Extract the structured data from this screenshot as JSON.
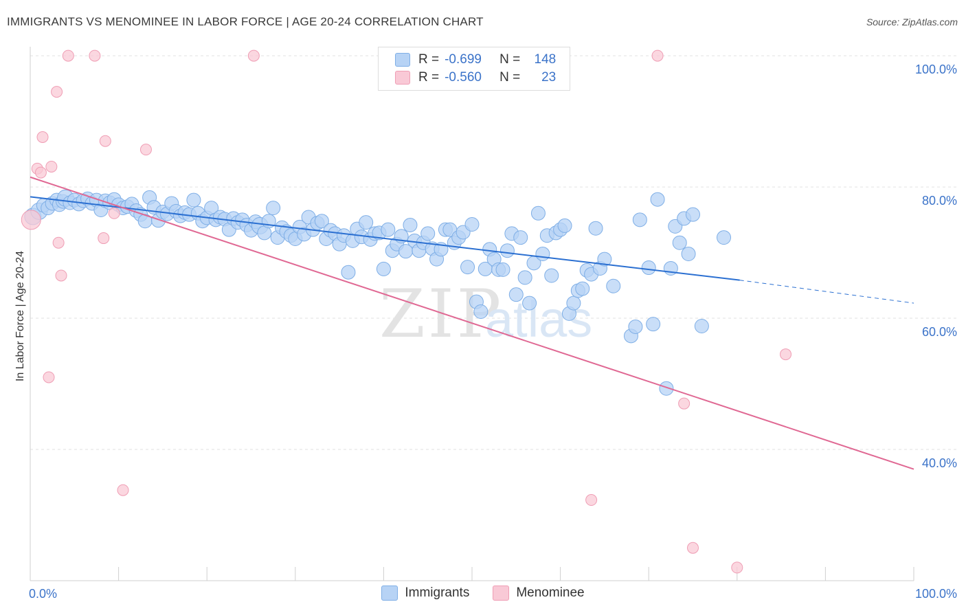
{
  "title": "IMMIGRANTS VS MENOMINEE IN LABOR FORCE | AGE 20-24 CORRELATION CHART",
  "source": "Source: ZipAtlas.com",
  "watermark": {
    "zip": "ZIP",
    "atlas": "atlas"
  },
  "legend": {
    "rows": [
      {
        "r_label": "R =",
        "r_value": "-0.699",
        "n_label": "N =",
        "n_value": "148"
      },
      {
        "r_label": "R =",
        "r_value": "-0.560",
        "n_label": "N =",
        "n_value": "23"
      }
    ]
  },
  "colors": {
    "immigrants_fill": "#b7d3f5",
    "immigrants_stroke": "#7eaee6",
    "immigrants_line": "#2a6fd1",
    "menominee_fill": "#f9c9d6",
    "menominee_stroke": "#ef9db4",
    "menominee_line": "#e06893",
    "axis_text": "#3b73c9"
  },
  "chart_data": {
    "type": "scatter",
    "title": "IMMIGRANTS VS MENOMINEE IN LABOR FORCE | AGE 20-24 CORRELATION CHART",
    "xlabel": "",
    "ylabel": "In Labor Force | Age 20-24",
    "xlim": [
      0,
      100
    ],
    "ylim": [
      20,
      102
    ],
    "x_tick_labels": [
      {
        "value": 0,
        "label": "0.0%"
      },
      {
        "value": 100,
        "label": "100.0%"
      }
    ],
    "y_tick_labels": [
      {
        "value": 100,
        "label": "100.0%"
      },
      {
        "value": 80,
        "label": "80.0%"
      },
      {
        "value": 60,
        "label": "60.0%"
      },
      {
        "value": 40,
        "label": "40.0%"
      }
    ],
    "grid": "horizontal-dashed",
    "legend_position": "top-center",
    "series": [
      {
        "name": "Immigrants",
        "trend": {
          "x": [
            0,
            80.3
          ],
          "y": [
            78.5,
            65.8
          ],
          "dashed_extension_to": [
            100,
            62.3
          ]
        },
        "points": [
          [
            0.3,
            75.5
          ],
          [
            1.0,
            76.3
          ],
          [
            1.5,
            77.2
          ],
          [
            2.0,
            76.8
          ],
          [
            2.5,
            77.5
          ],
          [
            3.0,
            78.0
          ],
          [
            3.3,
            77.3
          ],
          [
            3.7,
            77.8
          ],
          [
            4.0,
            78.3
          ],
          [
            4.5,
            77.6
          ],
          [
            5.0,
            78.0
          ],
          [
            5.5,
            77.4
          ],
          [
            6.0,
            77.9
          ],
          [
            6.5,
            78.2
          ],
          [
            7.0,
            77.5
          ],
          [
            7.5,
            78.0
          ],
          [
            8.0,
            76.5
          ],
          [
            8.5,
            77.9
          ],
          [
            9.0,
            77.6
          ],
          [
            9.5,
            78.1
          ],
          [
            10.0,
            77.3
          ],
          [
            10.5,
            76.8
          ],
          [
            11.0,
            77.0
          ],
          [
            11.5,
            77.4
          ],
          [
            12.0,
            76.4
          ],
          [
            12.5,
            75.8
          ],
          [
            13.0,
            74.8
          ],
          [
            13.5,
            78.4
          ],
          [
            14.0,
            76.9
          ],
          [
            14.5,
            74.9
          ],
          [
            15.0,
            76.2
          ],
          [
            15.5,
            75.9
          ],
          [
            16.0,
            77.5
          ],
          [
            16.5,
            76.3
          ],
          [
            17.0,
            75.6
          ],
          [
            17.5,
            76.1
          ],
          [
            18.0,
            75.8
          ],
          [
            18.5,
            78.0
          ],
          [
            19.0,
            76.0
          ],
          [
            19.5,
            74.8
          ],
          [
            20.0,
            75.3
          ],
          [
            20.5,
            76.8
          ],
          [
            21.0,
            75.0
          ],
          [
            21.5,
            75.4
          ],
          [
            22.0,
            75.1
          ],
          [
            22.5,
            73.5
          ],
          [
            23.0,
            75.2
          ],
          [
            23.5,
            74.6
          ],
          [
            24.0,
            75.0
          ],
          [
            24.5,
            74.2
          ],
          [
            25.0,
            73.4
          ],
          [
            25.5,
            74.7
          ],
          [
            26.0,
            74.1
          ],
          [
            26.5,
            73.0
          ],
          [
            27.0,
            74.8
          ],
          [
            27.5,
            76.8
          ],
          [
            28.0,
            72.3
          ],
          [
            28.5,
            73.8
          ],
          [
            29.0,
            73.2
          ],
          [
            29.5,
            72.6
          ],
          [
            30.0,
            72.1
          ],
          [
            30.5,
            73.9
          ],
          [
            31.0,
            72.8
          ],
          [
            31.5,
            75.4
          ],
          [
            32.0,
            73.5
          ],
          [
            32.5,
            74.5
          ],
          [
            33.0,
            74.8
          ],
          [
            33.5,
            72.1
          ],
          [
            34.0,
            73.4
          ],
          [
            34.5,
            72.9
          ],
          [
            35.0,
            71.3
          ],
          [
            35.5,
            72.6
          ],
          [
            36.0,
            67.0
          ],
          [
            36.5,
            71.8
          ],
          [
            37.0,
            73.6
          ],
          [
            37.5,
            72.4
          ],
          [
            38.0,
            74.6
          ],
          [
            38.5,
            72.0
          ],
          [
            39.0,
            72.9
          ],
          [
            39.5,
            73.0
          ],
          [
            40.0,
            67.5
          ],
          [
            40.5,
            73.5
          ],
          [
            41.0,
            70.3
          ],
          [
            41.5,
            71.3
          ],
          [
            42.0,
            72.5
          ],
          [
            42.5,
            70.2
          ],
          [
            43.0,
            74.2
          ],
          [
            43.5,
            71.8
          ],
          [
            44.0,
            70.3
          ],
          [
            44.5,
            71.5
          ],
          [
            45.0,
            72.9
          ],
          [
            45.5,
            70.6
          ],
          [
            46.0,
            69.0
          ],
          [
            46.5,
            70.5
          ],
          [
            47.0,
            73.5
          ],
          [
            47.5,
            73.5
          ],
          [
            48.0,
            71.5
          ],
          [
            48.5,
            72.3
          ],
          [
            49.0,
            73.1
          ],
          [
            49.5,
            67.8
          ],
          [
            50.0,
            74.3
          ],
          [
            50.5,
            62.5
          ],
          [
            51.0,
            61.0
          ],
          [
            51.5,
            67.5
          ],
          [
            52.0,
            70.5
          ],
          [
            52.5,
            69.0
          ],
          [
            53.0,
            67.4
          ],
          [
            53.5,
            67.4
          ],
          [
            54.0,
            70.3
          ],
          [
            54.5,
            72.9
          ],
          [
            55.0,
            63.6
          ],
          [
            55.5,
            72.3
          ],
          [
            56.0,
            66.2
          ],
          [
            56.5,
            62.3
          ],
          [
            57.0,
            68.4
          ],
          [
            57.5,
            76.0
          ],
          [
            58.0,
            69.8
          ],
          [
            58.5,
            72.6
          ],
          [
            59.0,
            66.5
          ],
          [
            59.5,
            73.0
          ],
          [
            60.0,
            73.5
          ],
          [
            60.5,
            74.1
          ],
          [
            61.0,
            60.7
          ],
          [
            61.5,
            62.3
          ],
          [
            62.0,
            64.2
          ],
          [
            62.5,
            64.5
          ],
          [
            63.0,
            67.3
          ],
          [
            63.5,
            66.7
          ],
          [
            64.0,
            73.7
          ],
          [
            64.5,
            67.6
          ],
          [
            65.0,
            69.0
          ],
          [
            66.0,
            64.9
          ],
          [
            68.0,
            57.3
          ],
          [
            68.5,
            58.7
          ],
          [
            69.0,
            75.0
          ],
          [
            70.0,
            67.7
          ],
          [
            70.5,
            59.1
          ],
          [
            71.0,
            78.1
          ],
          [
            72.0,
            49.3
          ],
          [
            72.5,
            67.6
          ],
          [
            73.0,
            74.0
          ],
          [
            73.5,
            71.5
          ],
          [
            74.0,
            75.2
          ],
          [
            74.5,
            69.8
          ],
          [
            75.0,
            75.8
          ],
          [
            76.0,
            58.8
          ],
          [
            78.5,
            72.3
          ]
        ]
      },
      {
        "name": "Menominee",
        "trend": {
          "x": [
            0,
            100
          ],
          "y": [
            81.5,
            37.0
          ]
        },
        "points": [
          [
            0.1,
            75.0
          ],
          [
            0.8,
            82.8
          ],
          [
            1.2,
            82.2
          ],
          [
            1.4,
            87.6
          ],
          [
            2.1,
            51.0
          ],
          [
            2.4,
            83.1
          ],
          [
            3.0,
            94.5
          ],
          [
            3.2,
            71.5
          ],
          [
            3.5,
            66.5
          ],
          [
            4.3,
            100.0
          ],
          [
            7.3,
            100.0
          ],
          [
            8.3,
            72.2
          ],
          [
            8.5,
            87.0
          ],
          [
            9.5,
            76.0
          ],
          [
            10.5,
            33.8
          ],
          [
            13.1,
            85.7
          ],
          [
            25.3,
            100.0
          ],
          [
            71.0,
            100.0
          ],
          [
            63.5,
            32.3
          ],
          [
            74.0,
            47.0
          ],
          [
            75.0,
            25.0
          ],
          [
            80.0,
            22.0
          ],
          [
            85.5,
            54.5
          ]
        ]
      }
    ]
  }
}
